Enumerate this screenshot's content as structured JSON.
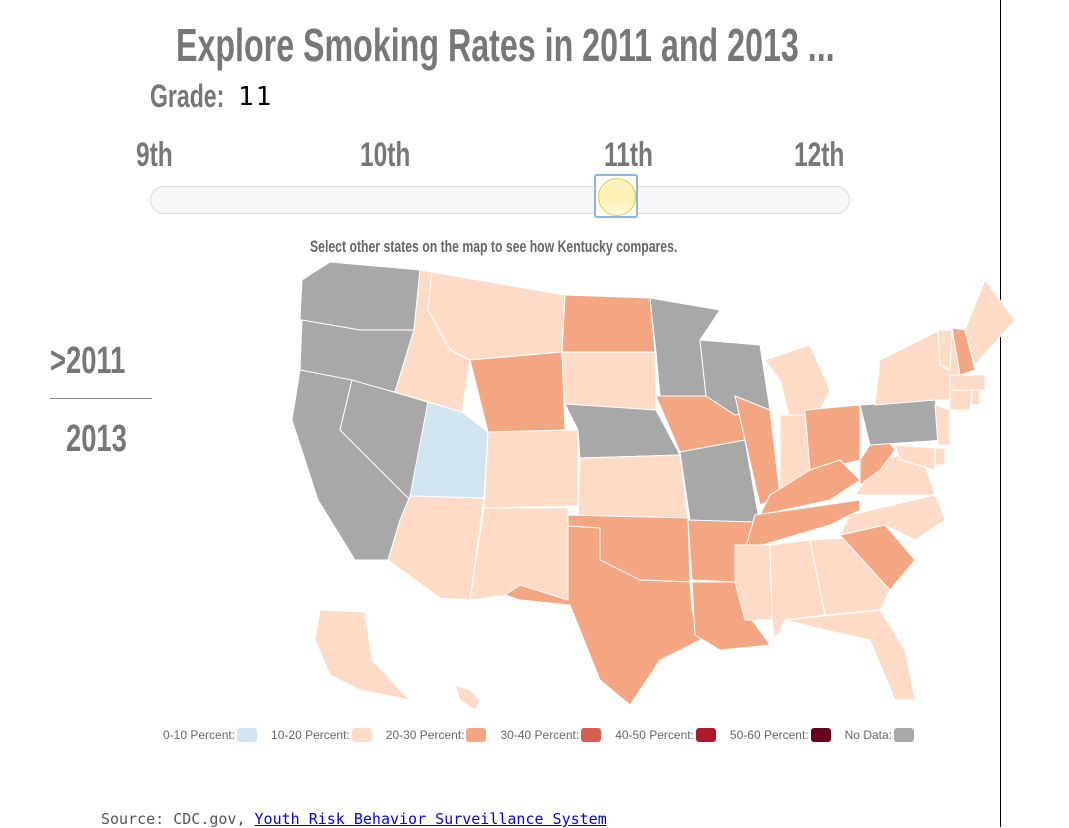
{
  "title": "Explore Smoking Rates in 2011 and 2013 ...",
  "grade": {
    "label": "Grade:",
    "value": "11"
  },
  "slider": {
    "ticks": [
      "9th",
      "10th",
      "11th",
      "12th"
    ],
    "selected": "11th"
  },
  "hint": "Select other states on the map to see how Kentucky compares.",
  "years": {
    "items": [
      "2011",
      "2013"
    ],
    "selected": "2011",
    "arrow": ">"
  },
  "colors": {
    "0-10": "#d1e5f0",
    "10-20": "#fddbc7",
    "20-30": "#f4a582",
    "30-40": "#d6604d",
    "40-50": "#b2182b",
    "50-60": "#67001f",
    "none": "#a8a8a8"
  },
  "legend": [
    {
      "label": "0-10 Percent:",
      "key": "0-10"
    },
    {
      "label": "10-20 Percent:",
      "key": "10-20"
    },
    {
      "label": "20-30 Percent:",
      "key": "20-30"
    },
    {
      "label": "30-40 Percent:",
      "key": "30-40"
    },
    {
      "label": "40-50 Percent:",
      "key": "40-50"
    },
    {
      "label": "50-60 Percent:",
      "key": "50-60"
    },
    {
      "label": "No Data:",
      "key": "none"
    }
  ],
  "states": {
    "WA": "none",
    "OR": "none",
    "CA": "none",
    "NV": "none",
    "ID": "10-20",
    "MT": "10-20",
    "WY": "20-30",
    "UT": "0-10",
    "AZ": "10-20",
    "CO": "10-20",
    "NM": "10-20",
    "ND": "20-30",
    "SD": "10-20",
    "NE": "none",
    "KS": "10-20",
    "OK": "20-30",
    "TX": "20-30",
    "MN": "none",
    "IA": "20-30",
    "MO": "none",
    "AR": "20-30",
    "LA": "20-30",
    "WI": "none",
    "IL": "20-30",
    "MI": "10-20",
    "IN": "10-20",
    "OH": "20-30",
    "KY": "20-30",
    "TN": "20-30",
    "MS": "10-20",
    "AL": "10-20",
    "GA": "10-20",
    "FL": "10-20",
    "SC": "20-30",
    "NC": "10-20",
    "VA": "10-20",
    "WV": "20-30",
    "PA": "none",
    "NY": "10-20",
    "VT": "10-20",
    "NH": "20-30",
    "ME": "10-20",
    "MA": "10-20",
    "CT": "10-20",
    "RI": "10-20",
    "NJ": "10-20",
    "DE": "10-20",
    "MD": "10-20",
    "AK": "10-20",
    "HI": "10-20"
  },
  "source": {
    "prefix": "Source: CDC.gov, ",
    "link": "Youth Risk Behavior Surveillance System"
  }
}
